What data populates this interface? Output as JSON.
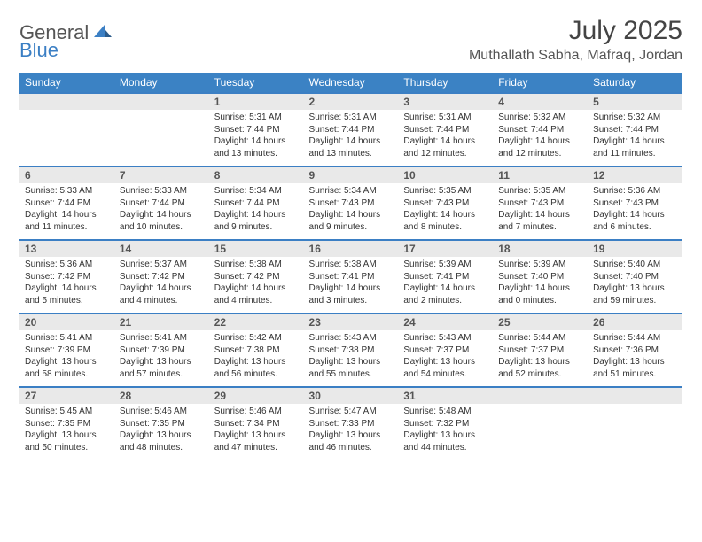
{
  "logo": {
    "part1": "General",
    "part2": "Blue"
  },
  "title": "July 2025",
  "location": "Muthallath Sabha, Mafraq, Jordan",
  "colors": {
    "header_bg": "#3b82c4",
    "accent": "#3b7fc4",
    "daynum_bg": "#e9e9e9",
    "text": "#333333"
  },
  "day_headers": [
    "Sunday",
    "Monday",
    "Tuesday",
    "Wednesday",
    "Thursday",
    "Friday",
    "Saturday"
  ],
  "weeks": [
    [
      null,
      null,
      {
        "n": "1",
        "sr": "5:31 AM",
        "ss": "7:44 PM",
        "dl": "14 hours and 13 minutes."
      },
      {
        "n": "2",
        "sr": "5:31 AM",
        "ss": "7:44 PM",
        "dl": "14 hours and 13 minutes."
      },
      {
        "n": "3",
        "sr": "5:31 AM",
        "ss": "7:44 PM",
        "dl": "14 hours and 12 minutes."
      },
      {
        "n": "4",
        "sr": "5:32 AM",
        "ss": "7:44 PM",
        "dl": "14 hours and 12 minutes."
      },
      {
        "n": "5",
        "sr": "5:32 AM",
        "ss": "7:44 PM",
        "dl": "14 hours and 11 minutes."
      }
    ],
    [
      {
        "n": "6",
        "sr": "5:33 AM",
        "ss": "7:44 PM",
        "dl": "14 hours and 11 minutes."
      },
      {
        "n": "7",
        "sr": "5:33 AM",
        "ss": "7:44 PM",
        "dl": "14 hours and 10 minutes."
      },
      {
        "n": "8",
        "sr": "5:34 AM",
        "ss": "7:44 PM",
        "dl": "14 hours and 9 minutes."
      },
      {
        "n": "9",
        "sr": "5:34 AM",
        "ss": "7:43 PM",
        "dl": "14 hours and 9 minutes."
      },
      {
        "n": "10",
        "sr": "5:35 AM",
        "ss": "7:43 PM",
        "dl": "14 hours and 8 minutes."
      },
      {
        "n": "11",
        "sr": "5:35 AM",
        "ss": "7:43 PM",
        "dl": "14 hours and 7 minutes."
      },
      {
        "n": "12",
        "sr": "5:36 AM",
        "ss": "7:43 PM",
        "dl": "14 hours and 6 minutes."
      }
    ],
    [
      {
        "n": "13",
        "sr": "5:36 AM",
        "ss": "7:42 PM",
        "dl": "14 hours and 5 minutes."
      },
      {
        "n": "14",
        "sr": "5:37 AM",
        "ss": "7:42 PM",
        "dl": "14 hours and 4 minutes."
      },
      {
        "n": "15",
        "sr": "5:38 AM",
        "ss": "7:42 PM",
        "dl": "14 hours and 4 minutes."
      },
      {
        "n": "16",
        "sr": "5:38 AM",
        "ss": "7:41 PM",
        "dl": "14 hours and 3 minutes."
      },
      {
        "n": "17",
        "sr": "5:39 AM",
        "ss": "7:41 PM",
        "dl": "14 hours and 2 minutes."
      },
      {
        "n": "18",
        "sr": "5:39 AM",
        "ss": "7:40 PM",
        "dl": "14 hours and 0 minutes."
      },
      {
        "n": "19",
        "sr": "5:40 AM",
        "ss": "7:40 PM",
        "dl": "13 hours and 59 minutes."
      }
    ],
    [
      {
        "n": "20",
        "sr": "5:41 AM",
        "ss": "7:39 PM",
        "dl": "13 hours and 58 minutes."
      },
      {
        "n": "21",
        "sr": "5:41 AM",
        "ss": "7:39 PM",
        "dl": "13 hours and 57 minutes."
      },
      {
        "n": "22",
        "sr": "5:42 AM",
        "ss": "7:38 PM",
        "dl": "13 hours and 56 minutes."
      },
      {
        "n": "23",
        "sr": "5:43 AM",
        "ss": "7:38 PM",
        "dl": "13 hours and 55 minutes."
      },
      {
        "n": "24",
        "sr": "5:43 AM",
        "ss": "7:37 PM",
        "dl": "13 hours and 54 minutes."
      },
      {
        "n": "25",
        "sr": "5:44 AM",
        "ss": "7:37 PM",
        "dl": "13 hours and 52 minutes."
      },
      {
        "n": "26",
        "sr": "5:44 AM",
        "ss": "7:36 PM",
        "dl": "13 hours and 51 minutes."
      }
    ],
    [
      {
        "n": "27",
        "sr": "5:45 AM",
        "ss": "7:35 PM",
        "dl": "13 hours and 50 minutes."
      },
      {
        "n": "28",
        "sr": "5:46 AM",
        "ss": "7:35 PM",
        "dl": "13 hours and 48 minutes."
      },
      {
        "n": "29",
        "sr": "5:46 AM",
        "ss": "7:34 PM",
        "dl": "13 hours and 47 minutes."
      },
      {
        "n": "30",
        "sr": "5:47 AM",
        "ss": "7:33 PM",
        "dl": "13 hours and 46 minutes."
      },
      {
        "n": "31",
        "sr": "5:48 AM",
        "ss": "7:32 PM",
        "dl": "13 hours and 44 minutes."
      },
      null,
      null
    ]
  ],
  "labels": {
    "sunrise": "Sunrise:",
    "sunset": "Sunset:",
    "daylight": "Daylight:"
  }
}
